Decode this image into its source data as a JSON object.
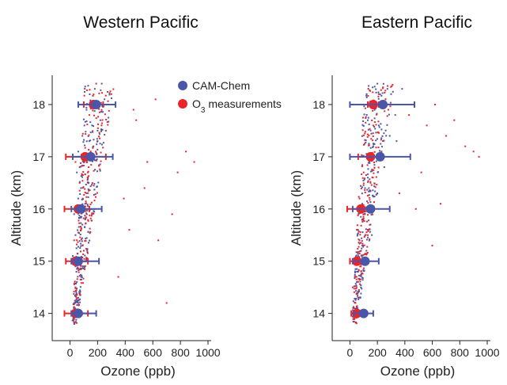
{
  "chart_data": [
    {
      "type": "scatter",
      "title": "Western Pacific",
      "xlabel": "Ozone (ppb)",
      "ylabel": "Altitude (km)",
      "xlim": [
        -60,
        1000
      ],
      "ylim": [
        13.6,
        18.5
      ],
      "xticks": [
        0,
        200,
        400,
        600,
        800,
        1000
      ],
      "yticks": [
        14,
        15,
        16,
        17,
        18
      ],
      "legend": {
        "placement": "top-right",
        "entries": [
          {
            "label": "CAM-Chem",
            "color": "#4a57a8"
          },
          {
            "label_main": "O",
            "label_sub": "3",
            "label_rest": " measurements",
            "color": "#e8262a"
          }
        ]
      },
      "series": [
        {
          "name": "CAM-Chem",
          "color": "#4a57a8",
          "means": [
            {
              "y": 18.0,
              "x": 190,
              "xerr_low": 60,
              "xerr_high": 330
            },
            {
              "y": 17.0,
              "x": 150,
              "xerr_low": 20,
              "xerr_high": 310
            },
            {
              "y": 16.0,
              "x": 80,
              "xerr_low": 10,
              "xerr_high": 230
            },
            {
              "y": 15.0,
              "x": 60,
              "xerr_low": 10,
              "xerr_high": 210
            },
            {
              "y": 14.0,
              "x": 60,
              "xerr_low": 10,
              "xerr_high": 190
            }
          ]
        },
        {
          "name": "O3 measurements",
          "color": "#e8262a",
          "means": [
            {
              "y": 18.0,
              "x": 170,
              "xerr_low": 100,
              "xerr_high": 240
            },
            {
              "y": 17.0,
              "x": 110,
              "xerr_low": -30,
              "xerr_high": 260
            },
            {
              "y": 16.0,
              "x": 60,
              "xerr_low": -40,
              "xerr_high": 140
            },
            {
              "y": 15.0,
              "x": 40,
              "xerr_low": -30,
              "xerr_high": 130
            },
            {
              "y": 14.0,
              "x": 40,
              "xerr_low": -40,
              "xerr_high": 130
            }
          ]
        }
      ],
      "scatter_points": {
        "CAM-Chem": [
          [
            30,
            14.1
          ],
          [
            70,
            14.4
          ],
          [
            50,
            14.6
          ],
          [
            90,
            15.3
          ],
          [
            40,
            15.5
          ],
          [
            110,
            15.8
          ],
          [
            60,
            16.2
          ],
          [
            80,
            16.4
          ],
          [
            130,
            16.6
          ],
          [
            70,
            16.8
          ],
          [
            170,
            17.2
          ],
          [
            90,
            17.4
          ],
          [
            160,
            17.6
          ],
          [
            220,
            17.7
          ],
          [
            120,
            17.9
          ],
          [
            250,
            18.1
          ],
          [
            180,
            18.3
          ],
          [
            230,
            18.4
          ],
          [
            20,
            15.1
          ],
          [
            100,
            16.9
          ],
          [
            60,
            17.1
          ],
          [
            140,
            17.3
          ],
          [
            200,
            17.5
          ],
          [
            50,
            16.7
          ],
          [
            110,
            16.1
          ],
          [
            30,
            15.9
          ],
          [
            40,
            14.9
          ],
          [
            80,
            14.7
          ],
          [
            60,
            14.3
          ],
          [
            90,
            15.7
          ]
        ],
        "O3 measurements": [
          [
            20,
            14.0
          ],
          [
            60,
            14.2
          ],
          [
            40,
            14.5
          ],
          [
            100,
            15.2
          ],
          [
            30,
            15.4
          ],
          [
            80,
            15.6
          ],
          [
            50,
            16.0
          ],
          [
            120,
            16.3
          ],
          [
            70,
            16.5
          ],
          [
            40,
            16.9
          ],
          [
            150,
            17.1
          ],
          [
            200,
            17.3
          ],
          [
            260,
            17.5
          ],
          [
            140,
            17.8
          ],
          [
            300,
            18.2
          ],
          [
            190,
            18.4
          ],
          [
            480,
            17.7
          ],
          [
            560,
            16.9
          ],
          [
            640,
            15.4
          ],
          [
            700,
            14.2
          ],
          [
            780,
            16.7
          ],
          [
            840,
            17.1
          ],
          [
            900,
            16.9
          ],
          [
            620,
            18.1
          ],
          [
            430,
            15.6
          ],
          [
            350,
            14.7
          ],
          [
            540,
            16.4
          ],
          [
            740,
            15.9
          ],
          [
            460,
            17.9
          ],
          [
            390,
            16.2
          ]
        ]
      }
    },
    {
      "type": "scatter",
      "title": "Eastern Pacific",
      "xlabel": "Ozone (ppb)",
      "ylabel": "Altitude (km)",
      "xlim": [
        -60,
        1000
      ],
      "ylim": [
        13.6,
        18.5
      ],
      "xticks": [
        0,
        200,
        400,
        600,
        800,
        1000
      ],
      "yticks": [
        14,
        15,
        16,
        17,
        18
      ],
      "series": [
        {
          "name": "CAM-Chem",
          "color": "#4a57a8",
          "means": [
            {
              "y": 18.0,
              "x": 240,
              "xerr_low": 0,
              "xerr_high": 470
            },
            {
              "y": 17.0,
              "x": 220,
              "xerr_low": 0,
              "xerr_high": 440
            },
            {
              "y": 16.0,
              "x": 150,
              "xerr_low": 20,
              "xerr_high": 290
            },
            {
              "y": 15.0,
              "x": 110,
              "xerr_low": 20,
              "xerr_high": 210
            },
            {
              "y": 14.0,
              "x": 100,
              "xerr_low": 30,
              "xerr_high": 170
            }
          ]
        },
        {
          "name": "O3 measurements",
          "color": "#e8262a",
          "means": [
            {
              "y": 18.0,
              "x": 170,
              "xerr_low": 130,
              "xerr_high": 210
            },
            {
              "y": 17.0,
              "x": 150,
              "xerr_low": 60,
              "xerr_high": 230
            },
            {
              "y": 16.0,
              "x": 80,
              "xerr_low": -20,
              "xerr_high": 170
            },
            {
              "y": 15.0,
              "x": 50,
              "xerr_low": 0,
              "xerr_high": 110
            },
            {
              "y": 14.0,
              "x": 50,
              "xerr_low": 10,
              "xerr_high": 90
            }
          ]
        }
      ],
      "scatter_points": {
        "CAM-Chem": [
          [
            40,
            14.2
          ],
          [
            80,
            14.5
          ],
          [
            60,
            14.8
          ],
          [
            120,
            15.2
          ],
          [
            70,
            15.4
          ],
          [
            150,
            15.7
          ],
          [
            90,
            16.1
          ],
          [
            200,
            16.3
          ],
          [
            130,
            16.6
          ],
          [
            250,
            16.8
          ],
          [
            170,
            17.2
          ],
          [
            290,
            17.4
          ],
          [
            210,
            17.6
          ],
          [
            330,
            17.8
          ],
          [
            260,
            18.1
          ],
          [
            380,
            18.3
          ],
          [
            100,
            15.9
          ],
          [
            60,
            15.1
          ],
          [
            140,
            16.9
          ],
          [
            230,
            17.1
          ],
          [
            300,
            18.2
          ],
          [
            180,
            17.9
          ],
          [
            50,
            14.6
          ],
          [
            110,
            16.4
          ],
          [
            160,
            15.5
          ],
          [
            75,
            14.3
          ],
          [
            340,
            17.3
          ],
          [
            200,
            18.4
          ],
          [
            90,
            15.8
          ],
          [
            130,
            17.7
          ]
        ],
        "O3 measurements": [
          [
            30,
            14.1
          ],
          [
            60,
            14.4
          ],
          [
            40,
            14.7
          ],
          [
            90,
            15.3
          ],
          [
            50,
            15.6
          ],
          [
            110,
            15.9
          ],
          [
            70,
            16.2
          ],
          [
            150,
            16.5
          ],
          [
            100,
            16.7
          ],
          [
            190,
            17.0
          ],
          [
            240,
            17.3
          ],
          [
            170,
            17.6
          ],
          [
            280,
            17.9
          ],
          [
            210,
            18.2
          ],
          [
            560,
            17.6
          ],
          [
            620,
            18.0
          ],
          [
            760,
            17.7
          ],
          [
            840,
            17.2
          ],
          [
            900,
            17.1
          ],
          [
            940,
            17.0
          ],
          [
            700,
            17.4
          ],
          [
            600,
            15.3
          ],
          [
            480,
            16.0
          ],
          [
            520,
            16.7
          ],
          [
            430,
            17.8
          ],
          [
            80,
            14.9
          ],
          [
            130,
            15.5
          ],
          [
            360,
            16.3
          ],
          [
            660,
            16.1
          ],
          [
            20,
            14.5
          ]
        ]
      }
    }
  ]
}
